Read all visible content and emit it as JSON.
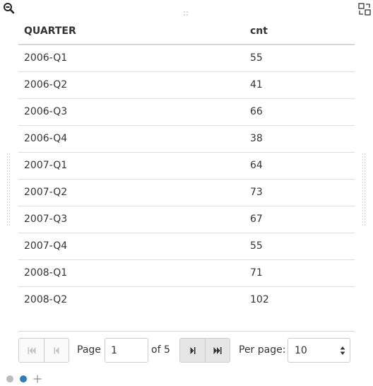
{
  "table": {
    "columns": [
      "QUARTER",
      "cnt"
    ],
    "rows": [
      [
        "2006-Q1",
        "55"
      ],
      [
        "2006-Q2",
        "41"
      ],
      [
        "2006-Q3",
        "66"
      ],
      [
        "2006-Q4",
        "38"
      ],
      [
        "2007-Q1",
        "64"
      ],
      [
        "2007-Q2",
        "73"
      ],
      [
        "2007-Q3",
        "67"
      ],
      [
        "2007-Q4",
        "55"
      ],
      [
        "2008-Q1",
        "71"
      ],
      [
        "2008-Q2",
        "102"
      ]
    ]
  },
  "pager": {
    "page_label": "Page",
    "current_page": "1",
    "of_label": "of 5",
    "per_page_label": "Per page:",
    "per_page_value": "10"
  },
  "icons": {
    "zoom": "zoom-out-icon",
    "swap": "swap-icon",
    "first": "first-page-icon",
    "prev": "previous-page-icon",
    "next": "next-page-icon",
    "last": "last-page-icon",
    "add": "plus-icon"
  },
  "colors": {
    "active_dot": "#337ab7",
    "inactive_dot": "#bbbbbb"
  }
}
